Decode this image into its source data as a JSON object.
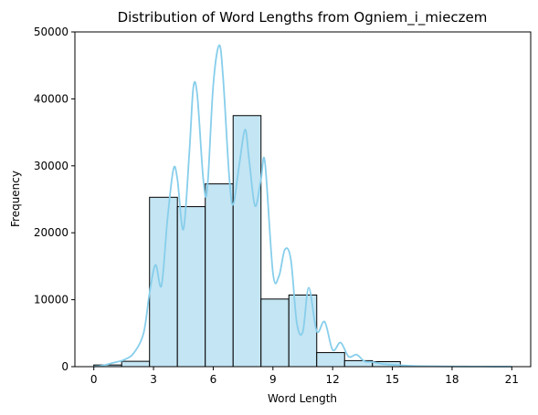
{
  "chart_data": {
    "type": "bar",
    "title": "Distribution of Word Lengths from Ogniem_i_mieczem",
    "xlabel": "Word Length",
    "ylabel": "Frequency",
    "xlim": [
      -0.95,
      21.95
    ],
    "ylim": [
      0,
      50000
    ],
    "xticks": [
      0,
      3,
      6,
      9,
      12,
      15,
      18,
      21
    ],
    "yticks": [
      0,
      10000,
      20000,
      30000,
      40000,
      50000
    ],
    "bin_width": 1.4,
    "bins": [
      {
        "start": 0.0,
        "end": 1.4,
        "value": 250
      },
      {
        "start": 1.4,
        "end": 2.8,
        "value": 800
      },
      {
        "start": 2.8,
        "end": 4.2,
        "value": 25300
      },
      {
        "start": 4.2,
        "end": 5.6,
        "value": 23900
      },
      {
        "start": 5.6,
        "end": 7.0,
        "value": 27300
      },
      {
        "start": 7.0,
        "end": 8.4,
        "value": 37500
      },
      {
        "start": 8.4,
        "end": 9.8,
        "value": 10100
      },
      {
        "start": 9.8,
        "end": 11.2,
        "value": 10700
      },
      {
        "start": 11.2,
        "end": 12.6,
        "value": 2100
      },
      {
        "start": 12.6,
        "end": 14.0,
        "value": 900
      },
      {
        "start": 14.0,
        "end": 15.4,
        "value": 750
      },
      {
        "start": 15.4,
        "end": 16.8,
        "value": 40
      },
      {
        "start": 16.8,
        "end": 18.2,
        "value": 10
      },
      {
        "start": 18.2,
        "end": 19.6,
        "value": 5
      },
      {
        "start": 19.6,
        "end": 21.0,
        "value": 5
      }
    ],
    "kde": {
      "name": "",
      "x": [
        0,
        0.5,
        1,
        1.5,
        2,
        2.5,
        2.8,
        3.1,
        3.4,
        3.7,
        4.0,
        4.2,
        4.5,
        4.8,
        5.0,
        5.2,
        5.5,
        5.7,
        6.0,
        6.3,
        6.5,
        6.8,
        7.0,
        7.3,
        7.6,
        7.8,
        8.1,
        8.4,
        8.6,
        9.0,
        9.3,
        9.6,
        9.9,
        10.2,
        10.5,
        10.8,
        11.2,
        11.6,
        12.0,
        12.4,
        12.8,
        13.2,
        13.6,
        14.0,
        14.5,
        15.0,
        16.0,
        17.0,
        18.0,
        19.0,
        20.0,
        21.0
      ],
      "y": [
        0,
        200,
        600,
        1000,
        2000,
        5000,
        11000,
        15200,
        12100,
        22000,
        29500,
        28000,
        20500,
        32000,
        41700,
        40500,
        28000,
        26500,
        42000,
        48000,
        43000,
        28500,
        24200,
        30000,
        35400,
        31000,
        24000,
        28000,
        30500,
        14000,
        13500,
        17500,
        16000,
        6500,
        5200,
        11800,
        5300,
        6700,
        2500,
        3600,
        1500,
        1800,
        800,
        700,
        400,
        300,
        120,
        60,
        30,
        20,
        10,
        5
      ]
    },
    "colors": {
      "bar_fill": "#c4e5f3",
      "bar_edge": "#000000",
      "kde_line": "#87ceeb"
    },
    "grid": false,
    "legend": "none"
  }
}
